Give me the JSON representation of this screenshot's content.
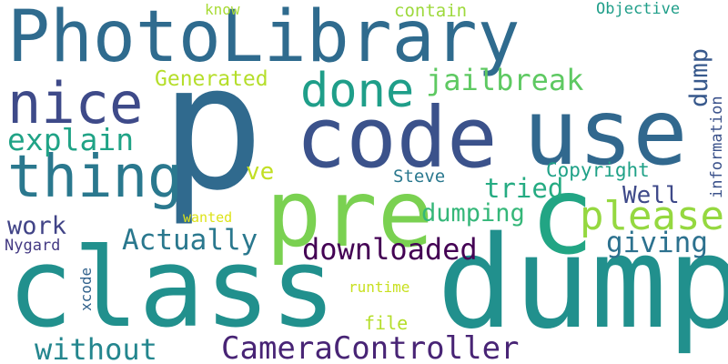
{
  "words": {
    "p": {
      "text": "p",
      "color": "#306a8e"
    },
    "PhotoLibrary": {
      "text": "PhotoLibrary",
      "color": "#2f6b8e"
    },
    "class": {
      "text": "class",
      "color": "#21908d"
    },
    "dump": {
      "text": "dump",
      "color": "#21908d"
    },
    "c": {
      "text": "c",
      "color": "#22a584"
    },
    "use": {
      "text": "use",
      "color": "#31688e"
    },
    "code": {
      "text": "code",
      "color": "#3b528b"
    },
    "pre": {
      "text": "pre",
      "color": "#7ad151"
    },
    "nice": {
      "text": "nice",
      "color": "#3e4a89"
    },
    "thing": {
      "text": "thing",
      "color": "#2a788e"
    },
    "done": {
      "text": "done",
      "color": "#1f9e89"
    },
    "please": {
      "text": "please",
      "color": "#95d840"
    },
    "explain": {
      "text": "explain",
      "color": "#20a386"
    },
    "jailbreak": {
      "text": "jailbreak",
      "color": "#5ec962"
    },
    "CameraController": {
      "text": "CameraController",
      "color": "#482475"
    },
    "without": {
      "text": "without",
      "color": "#24868e"
    },
    "downloaded": {
      "text": "downloaded",
      "color": "#440154"
    },
    "Actually": {
      "text": "Actually",
      "color": "#2a788e"
    },
    "giving": {
      "text": "giving",
      "color": "#2c718e"
    },
    "dumping": {
      "text": "dumping",
      "color": "#35b779"
    },
    "tried": {
      "text": "tried",
      "color": "#25ab82"
    },
    "Well": {
      "text": "Well",
      "color": "#3e4989"
    },
    "work": {
      "text": "work",
      "color": "#414487"
    },
    "Generated": {
      "text": "Generated",
      "color": "#b5de2b"
    },
    "dump_small": {
      "text": "dump",
      "color": "#38598c"
    },
    "ve": {
      "text": "ve",
      "color": "#c2df23"
    },
    "Copyright": {
      "text": "Copyright",
      "color": "#1fa187"
    },
    "Steve": {
      "text": "Steve",
      "color": "#2a788e"
    },
    "contain": {
      "text": "contain",
      "color": "#9dd93b"
    },
    "know": {
      "text": "know",
      "color": "#a8db34"
    },
    "Objective": {
      "text": "Objective",
      "color": "#1f9e89"
    },
    "information": {
      "text": "information",
      "color": "#3b528b"
    },
    "Nygard": {
      "text": "Nygard",
      "color": "#443a83"
    },
    "wanted": {
      "text": "wanted",
      "color": "#dde318"
    },
    "runtime": {
      "text": "runtime",
      "color": "#c8e020"
    },
    "xcode": {
      "text": "xcode",
      "color": "#33638d"
    },
    "file": {
      "text": "file",
      "color": "#b5de2b"
    }
  }
}
